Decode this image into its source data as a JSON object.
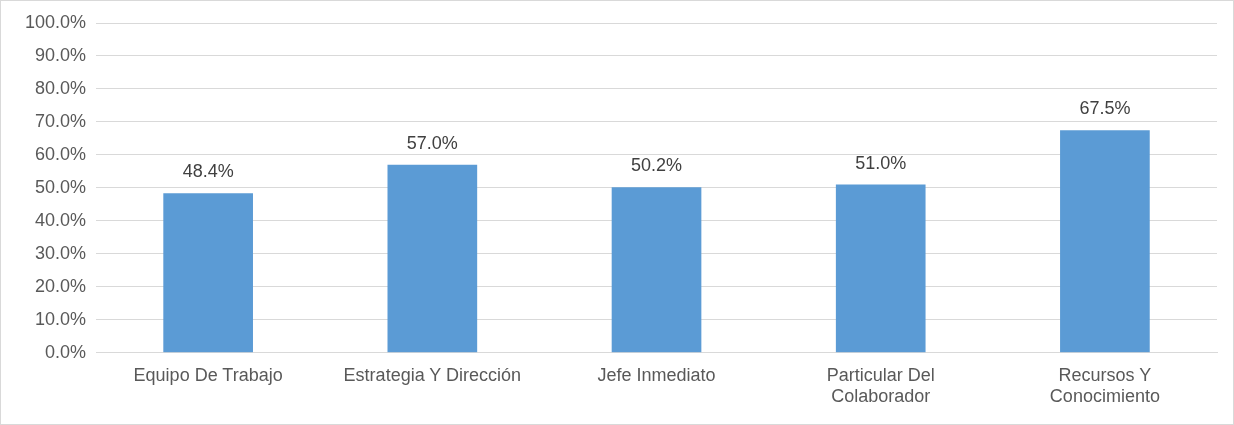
{
  "chart_data": {
    "type": "bar",
    "categories": [
      "Equipo De Trabajo",
      "Estrategia Y Dirección",
      "Jefe Inmediato",
      "Particular Del Colaborador",
      "Recursos Y Conocimiento"
    ],
    "values": [
      48.4,
      57.0,
      50.2,
      51.0,
      67.5
    ],
    "value_labels": [
      "48.4%",
      "57.0%",
      "50.2%",
      "51.0%",
      "67.5%"
    ],
    "color": "#5b9bd5",
    "ylim": [
      0,
      100
    ],
    "yticks": [
      {
        "value": 0,
        "label": "0.0%"
      },
      {
        "value": 10,
        "label": "10.0%"
      },
      {
        "value": 20,
        "label": "20.0%"
      },
      {
        "value": 30,
        "label": "30.0%"
      },
      {
        "value": 40,
        "label": "40.0%"
      },
      {
        "value": 50,
        "label": "50.0%"
      },
      {
        "value": 60,
        "label": "60.0%"
      },
      {
        "value": 70,
        "label": "70.0%"
      },
      {
        "value": 80,
        "label": "80.0%"
      },
      {
        "value": 90,
        "label": "90.0%"
      },
      {
        "value": 100,
        "label": "100.0%"
      }
    ],
    "grid": "y",
    "legend": false
  }
}
